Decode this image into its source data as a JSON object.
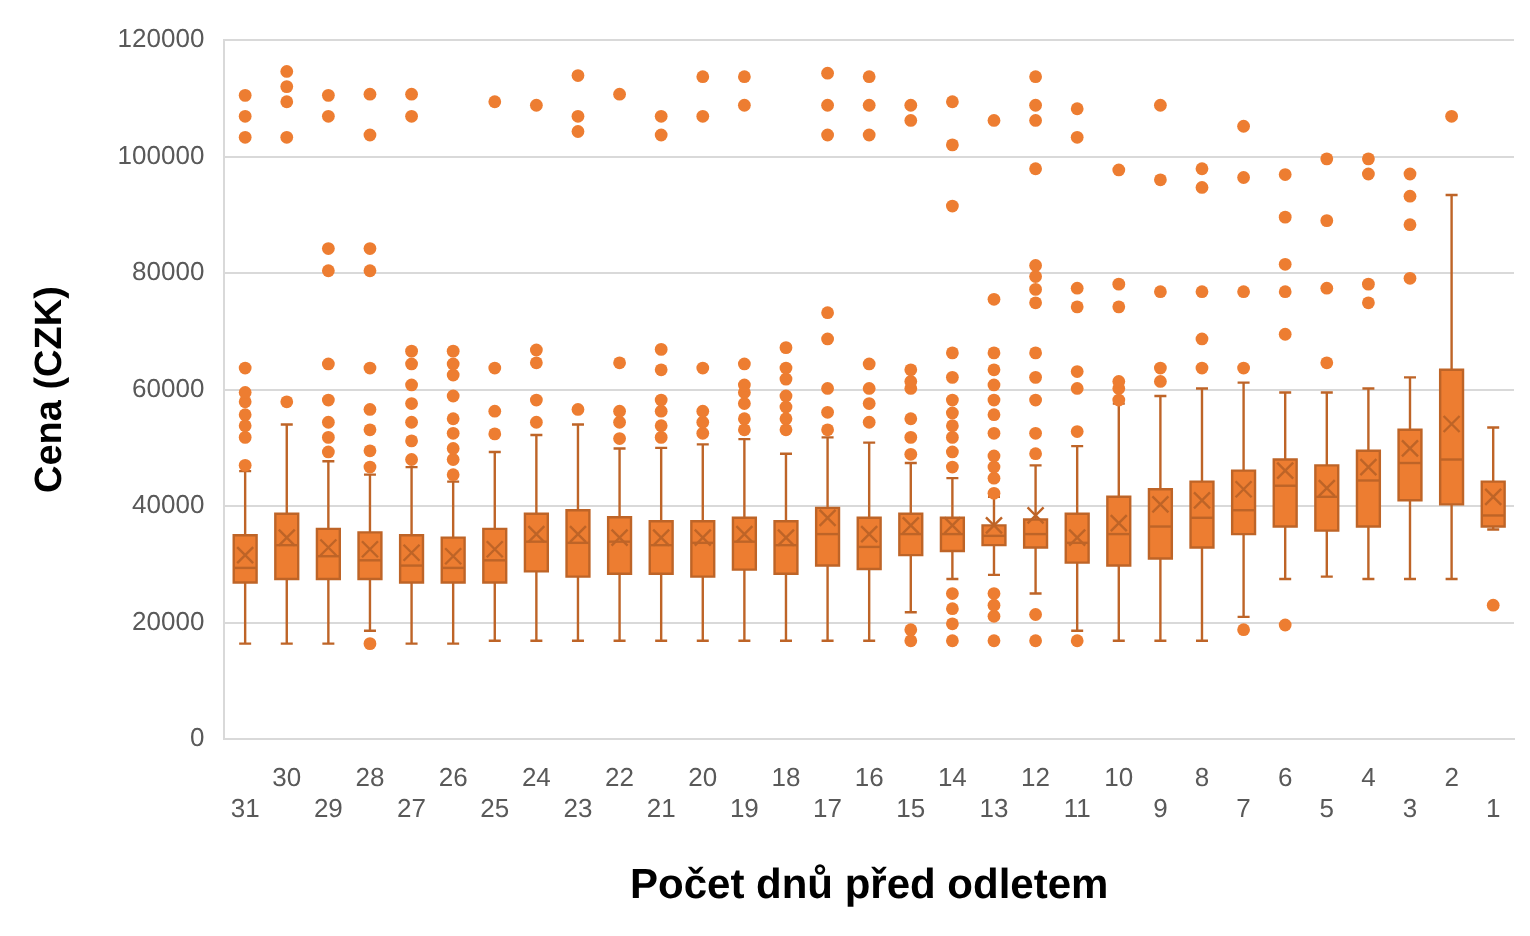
{
  "chart_data": {
    "type": "box",
    "xlabel": "Počet dnů před odletem",
    "ylabel": "Cena (CZK)",
    "color": "#ed7d31",
    "categories": [
      "31",
      "30",
      "29",
      "28",
      "27",
      "26",
      "25",
      "24",
      "23",
      "22",
      "21",
      "20",
      "19",
      "18",
      "17",
      "16",
      "15",
      "14",
      "13",
      "12",
      "11",
      "10",
      "9",
      "8",
      "7",
      "6",
      "5",
      "4",
      "3",
      "2",
      "1"
    ],
    "ylim": [
      0,
      120000
    ],
    "yticks": [
      0,
      20000,
      40000,
      60000,
      80000,
      100000,
      120000
    ],
    "grid": "y",
    "boxes": [
      {
        "low": 16400,
        "q1": 26900,
        "median": 29400,
        "q3": 35000,
        "high": 46000,
        "mean": 31600,
        "outliers": [
          47000,
          51800,
          53800,
          55700,
          57900,
          59500,
          63700,
          103300,
          106900,
          110500
        ]
      },
      {
        "low": 16400,
        "q1": 27500,
        "median": 33300,
        "q3": 38700,
        "high": 54000,
        "mean": 34600,
        "outliers": [
          57900,
          103300,
          109400,
          112000,
          114600
        ]
      },
      {
        "low": 16400,
        "q1": 27500,
        "median": 31400,
        "q3": 36100,
        "high": 47700,
        "mean": 32900,
        "outliers": [
          49300,
          51800,
          54400,
          58200,
          64400,
          80400,
          84200,
          106900,
          110500
        ]
      },
      {
        "low": 18600,
        "q1": 27500,
        "median": 30700,
        "q3": 35500,
        "high": 45400,
        "mean": 32600,
        "outliers": [
          16400,
          46700,
          49500,
          53100,
          56600,
          63700,
          80400,
          84200,
          103700,
          110700
        ]
      },
      {
        "low": 16400,
        "q1": 26900,
        "median": 29800,
        "q3": 35000,
        "high": 46700,
        "mean": 32000,
        "outliers": [
          48000,
          51200,
          54400,
          57600,
          60800,
          64400,
          66600,
          106900,
          110700
        ]
      },
      {
        "low": 16400,
        "q1": 26900,
        "median": 29400,
        "q3": 34600,
        "high": 44200,
        "mean": 31400,
        "outliers": [
          45400,
          48000,
          49900,
          52500,
          55000,
          58900,
          62500,
          64400,
          66600
        ]
      },
      {
        "low": 16900,
        "q1": 26900,
        "median": 30700,
        "q3": 36100,
        "high": 49300,
        "mean": 32600,
        "outliers": [
          52400,
          56300,
          63700,
          109400
        ]
      },
      {
        "low": 16900,
        "q1": 28800,
        "median": 33900,
        "q3": 38700,
        "high": 52200,
        "mean": 35200,
        "outliers": [
          54400,
          58200,
          64600,
          66800,
          108800
        ]
      },
      {
        "low": 16900,
        "q1": 27900,
        "median": 33700,
        "q3": 39300,
        "high": 54000,
        "mean": 35200,
        "outliers": [
          56600,
          104300,
          106900,
          113900
        ]
      },
      {
        "low": 16900,
        "q1": 28400,
        "median": 33900,
        "q3": 38100,
        "high": 49900,
        "mean": 34600,
        "outliers": [
          51600,
          54400,
          56300,
          64600,
          110700
        ]
      },
      {
        "low": 16900,
        "q1": 28400,
        "median": 33300,
        "q3": 37400,
        "high": 50000,
        "mean": 34600,
        "outliers": [
          51800,
          53800,
          56300,
          58200,
          63400,
          66900,
          103700,
          106900
        ]
      },
      {
        "low": 16900,
        "q1": 27900,
        "median": 33700,
        "q3": 37400,
        "high": 50600,
        "mean": 34600,
        "outliers": [
          52500,
          54400,
          56300,
          63700,
          106900,
          113700
        ]
      },
      {
        "low": 16900,
        "q1": 29100,
        "median": 33900,
        "q3": 38000,
        "high": 51500,
        "mean": 35200,
        "outliers": [
          53100,
          55000,
          57600,
          59500,
          60800,
          64400,
          108800,
          113700
        ]
      },
      {
        "low": 16900,
        "q1": 28400,
        "median": 33300,
        "q3": 37400,
        "high": 49000,
        "mean": 34600,
        "outliers": [
          53100,
          55000,
          57000,
          58900,
          61800,
          63700,
          67200
        ]
      },
      {
        "low": 16900,
        "q1": 29800,
        "median": 35200,
        "q3": 39700,
        "high": 51800,
        "mean": 38000,
        "outliers": [
          53100,
          56100,
          60200,
          68700,
          73200,
          103700,
          108800,
          114300
        ]
      },
      {
        "low": 16900,
        "q1": 29200,
        "median": 33000,
        "q3": 38000,
        "high": 50900,
        "mean": 35200,
        "outliers": [
          54400,
          57600,
          60200,
          64400,
          103700,
          108800,
          113700
        ]
      },
      {
        "low": 21800,
        "q1": 31600,
        "median": 35200,
        "q3": 38700,
        "high": 47400,
        "mean": 36700,
        "outliers": [
          16900,
          18800,
          48900,
          51800,
          55000,
          60200,
          61400,
          63400,
          106200,
          108800
        ]
      },
      {
        "low": 27500,
        "q1": 32300,
        "median": 35200,
        "q3": 38000,
        "high": 44800,
        "mean": 36700,
        "outliers": [
          16900,
          19800,
          22400,
          25000,
          46700,
          49300,
          51800,
          53800,
          56000,
          58200,
          62100,
          66300,
          91500,
          102000,
          109400
        ]
      },
      {
        "low": 28200,
        "q1": 33300,
        "median": 34900,
        "q3": 36700,
        "high": 41600,
        "mean": 36700,
        "outliers": [
          16900,
          21100,
          23000,
          25000,
          42200,
          44800,
          46700,
          48600,
          52500,
          55700,
          58200,
          60800,
          63400,
          66300,
          75500,
          106200
        ]
      },
      {
        "low": 25000,
        "q1": 32900,
        "median": 35200,
        "q3": 37700,
        "high": 47000,
        "mean": 38400,
        "outliers": [
          16900,
          21400,
          49000,
          52500,
          58200,
          62100,
          66300,
          74900,
          77200,
          79400,
          81300,
          97900,
          106200,
          108800,
          113700
        ]
      },
      {
        "low": 18600,
        "q1": 30300,
        "median": 33700,
        "q3": 38700,
        "high": 50300,
        "mean": 34600,
        "outliers": [
          16900,
          52800,
          60200,
          63100,
          74200,
          77400,
          103300,
          108200
        ]
      },
      {
        "low": 16900,
        "q1": 29800,
        "median": 35200,
        "q3": 41600,
        "high": 57600,
        "mean": 37100,
        "outliers": [
          58200,
          60200,
          61400,
          74200,
          78100,
          97700
        ]
      },
      {
        "low": 16900,
        "q1": 31000,
        "median": 36500,
        "q3": 42900,
        "high": 58900,
        "mean": 40300,
        "outliers": [
          61400,
          63700,
          76800,
          96000,
          108800
        ]
      },
      {
        "low": 16900,
        "q1": 32900,
        "median": 38000,
        "q3": 44200,
        "high": 60200,
        "mean": 41000,
        "outliers": [
          63700,
          68700,
          76800,
          94700,
          97900
        ]
      },
      {
        "low": 21000,
        "q1": 35200,
        "median": 39300,
        "q3": 46100,
        "high": 61200,
        "mean": 42900,
        "outliers": [
          18800,
          63700,
          76800,
          96400,
          105200
        ]
      },
      {
        "low": 27500,
        "q1": 36500,
        "median": 43500,
        "q3": 48000,
        "high": 59500,
        "mean": 46100,
        "outliers": [
          19600,
          69500,
          76800,
          81500,
          89600,
          96900
        ]
      },
      {
        "low": 27900,
        "q1": 35800,
        "median": 41600,
        "q3": 47000,
        "high": 59500,
        "mean": 43100,
        "outliers": [
          64600,
          77400,
          89000,
          99600
        ]
      },
      {
        "low": 27500,
        "q1": 36500,
        "median": 44400,
        "q3": 49500,
        "high": 60200,
        "mean": 46700,
        "outliers": [
          74900,
          78100,
          97000,
          99600
        ]
      },
      {
        "low": 27500,
        "q1": 41000,
        "median": 47400,
        "q3": 53100,
        "high": 62100,
        "mean": 49900,
        "outliers": [
          79100,
          88300,
          93200,
          97000
        ]
      },
      {
        "low": 27500,
        "q1": 40300,
        "median": 48000,
        "q3": 63400,
        "high": 93400,
        "mean": 54100,
        "outliers": [
          106900
        ]
      },
      {
        "low": 36000,
        "q1": 36500,
        "median": 38400,
        "q3": 44200,
        "high": 53500,
        "mean": 41600,
        "outliers": [
          23000
        ]
      }
    ]
  }
}
